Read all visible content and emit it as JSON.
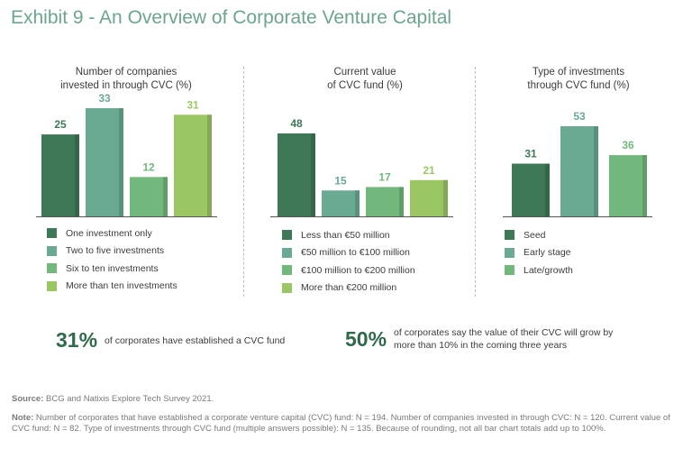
{
  "title": "Exhibit 9 - An Overview of Corporate Venture Capital",
  "colors": [
    "#3f7857",
    "#6aaa92",
    "#72b87c",
    "#9bc664"
  ],
  "chart_data": [
    {
      "type": "bar",
      "title_line1": "Number of companies",
      "title_line2": "invested in through CVC (%)",
      "categories": [
        "One investment only",
        "Two to five investments",
        "Six to ten investments",
        "More than ten investments"
      ],
      "values": [
        25,
        33,
        12,
        31
      ],
      "labels": [
        "25",
        "33",
        "12",
        "31"
      ],
      "ylim": [
        0,
        50
      ]
    },
    {
      "type": "bar",
      "title_line1": "Current value",
      "title_line2": "of CVC fund (%)",
      "categories": [
        "Less than €50 million",
        "€50 million to €100 million",
        "€100 million to €200 million",
        "More than €200 million"
      ],
      "values": [
        48,
        15,
        17,
        21
      ],
      "labels": [
        "48",
        "15",
        "17",
        "21"
      ],
      "ylim": [
        0,
        50
      ]
    },
    {
      "type": "bar",
      "title_line1": "Type of investments",
      "title_line2": "through CVC fund (%)",
      "categories": [
        "Seed",
        "Early stage",
        "Late/growth"
      ],
      "values": [
        31,
        53,
        36
      ],
      "labels": [
        "31",
        "53",
        "36"
      ],
      "ylim": [
        0,
        53
      ]
    }
  ],
  "stats": [
    {
      "value": "31%",
      "text_line1": "of corporates have established a CVC fund",
      "text_line2": ""
    },
    {
      "value": "50%",
      "text_line1": "of corporates say the value of their CVC will grow by",
      "text_line2": "more than 10% in the coming three years"
    }
  ],
  "source": {
    "label": "Source:",
    "text": "BCG and Natixis Explore Tech Survey 2021."
  },
  "note": {
    "label": "Note:",
    "text": "Number of corporates that have established a corporate venture capital (CVC) fund: N = 194. Number of companies invested in through CVC: N = 120. Current value of CVC fund: N = 82. Type of investments through CVC fund (multiple answers possible): N = 135. Because of rounding, not all bar chart totals add up to 100%."
  }
}
